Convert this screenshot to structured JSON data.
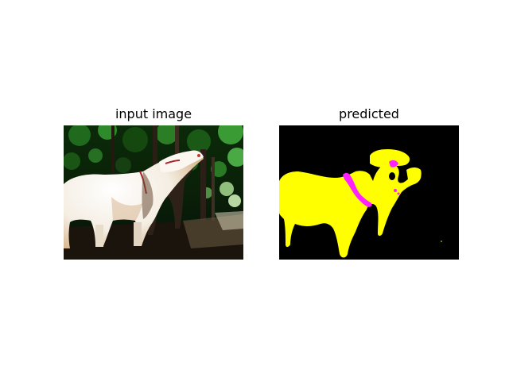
{
  "figure": {
    "background": "#ffffff",
    "panels": [
      {
        "title": "input image",
        "kind": "photo",
        "subject": "cow",
        "colors": {
          "foliage_dark": "#071c06",
          "foliage_bright": "#2f8a2c",
          "cow_white": "#f7f2ea",
          "cow_tan": "#e8c9a0",
          "shadow": "#1a120c"
        }
      },
      {
        "title": "predicted",
        "kind": "segmentation_mask",
        "colors": {
          "background_class": "#000000",
          "cow_class": "#ffff00",
          "other_class": "#ff22ff"
        }
      }
    ]
  }
}
